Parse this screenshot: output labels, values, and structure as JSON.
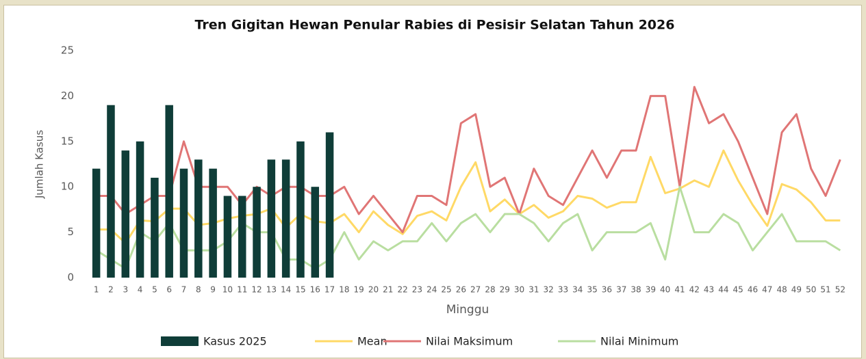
{
  "chart_data": {
    "type": "bar-line",
    "title": "Tren Gigitan Hewan Penular Rabies di Pesisir Selatan Tahun 2026",
    "x_label": "Minggu",
    "y_label": "Jumlah Kasus",
    "categories": [
      "1",
      "2",
      "3",
      "4",
      "5",
      "6",
      "7",
      "8",
      "9",
      "10",
      "11",
      "12",
      "13",
      "14",
      "15",
      "16",
      "17",
      "18",
      "19",
      "20",
      "21",
      "22",
      "23",
      "24",
      "25",
      "26",
      "27",
      "28",
      "29",
      "30",
      "31",
      "32",
      "33",
      "34",
      "35",
      "36",
      "37",
      "38",
      "39",
      "40",
      "41",
      "42",
      "43",
      "44",
      "45",
      "46",
      "47",
      "48",
      "49",
      "50",
      "51",
      "52"
    ],
    "ylim": [
      0,
      25
    ],
    "yticks": [
      0,
      5,
      10,
      15,
      20,
      25
    ],
    "legend": "bottom",
    "series": [
      {
        "name": "Kasus 2025",
        "type": "bar",
        "color": "#0f3d38",
        "values": [
          12,
          19,
          14,
          15,
          11,
          19,
          12,
          13,
          12,
          9,
          9,
          10,
          13,
          13,
          15,
          10,
          16,
          null,
          null,
          null,
          null,
          null,
          null,
          null,
          null,
          null,
          null,
          null,
          null,
          null,
          null,
          null,
          null,
          null,
          null,
          null,
          null,
          null,
          null,
          null,
          null,
          null,
          null,
          null,
          null,
          null,
          null,
          null,
          null,
          null,
          null,
          null
        ]
      },
      {
        "name": "Mean",
        "type": "line",
        "color": "#ffd966",
        "values": [
          5.3,
          5.3,
          3.8,
          6.3,
          6.2,
          7.6,
          7.6,
          5.8,
          6,
          6.5,
          6.8,
          7,
          7.6,
          5.5,
          7,
          6.2,
          6,
          7,
          5,
          7.3,
          5.8,
          4.8,
          6.8,
          7.3,
          6.3,
          10,
          12.7,
          7.3,
          8.6,
          7,
          8,
          6.6,
          7.3,
          9,
          8.7,
          7.7,
          8.3,
          8.3,
          13.3,
          9.3,
          9.8,
          10.7,
          10,
          14,
          10.7,
          8,
          5.7,
          10.3,
          9.7,
          8.3,
          6.3,
          6.3
        ]
      },
      {
        "name": "Nilai Maksimum",
        "type": "line",
        "color": "#e07575",
        "values": [
          9,
          9,
          7,
          8,
          9,
          9,
          15,
          10,
          10,
          10,
          8,
          10,
          9,
          10,
          10,
          9,
          9,
          10,
          7,
          9,
          7,
          5,
          9,
          9,
          8,
          17,
          18,
          10,
          11,
          7,
          12,
          9,
          8,
          11,
          14,
          11,
          14,
          14,
          20,
          20,
          10,
          21,
          17,
          18,
          15,
          11,
          7,
          16,
          18,
          12,
          9,
          13
        ]
      },
      {
        "name": "Nilai Minimum",
        "type": "line",
        "color": "#b9dea0",
        "values": [
          3,
          2,
          1,
          5,
          4,
          6,
          3,
          3,
          3,
          4,
          6,
          5,
          5,
          2,
          2,
          1,
          2,
          5,
          2,
          4,
          3,
          4,
          4,
          6,
          4,
          6,
          7,
          5,
          7,
          7,
          6,
          4,
          6,
          7,
          3,
          5,
          5,
          5,
          6,
          2,
          10,
          5,
          5,
          7,
          6,
          3,
          5,
          7,
          4,
          4,
          4,
          3
        ]
      }
    ]
  }
}
